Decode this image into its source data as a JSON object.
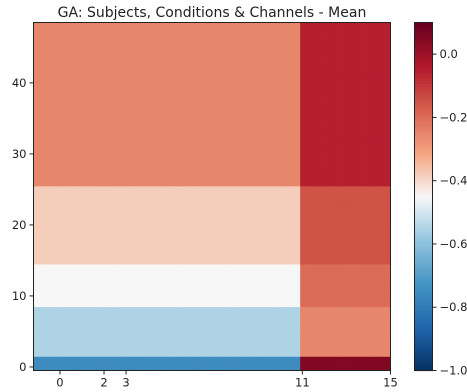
{
  "chart_data": {
    "type": "heatmap",
    "title": "GA: Subjects, Conditions & Channels - Mean",
    "colormap": "RdBu_r",
    "x_ticks": [
      0,
      2,
      3,
      11,
      15
    ],
    "x_tick_labels": [
      "0",
      "2",
      "3",
      "11",
      "15"
    ],
    "xlim": [
      -1.2,
      15
    ],
    "y_ticks": [
      0,
      10,
      20,
      30,
      40
    ],
    "y_tick_labels": [
      "0",
      "10",
      "20",
      "30",
      "40"
    ],
    "ylim": [
      -0.5,
      48.5
    ],
    "colorbar": {
      "vmin": -1.0,
      "vmax": 0.1,
      "ticks": [
        0.0,
        -0.2,
        -0.4,
        -0.6,
        -0.8,
        -1.0
      ],
      "tick_labels": [
        "0.0",
        "−0.2",
        "−0.4",
        "−0.6",
        "−0.8",
        "−1.0"
      ]
    },
    "approx_profile": {
      "x_segments": [
        {
          "x": [
            -1.2,
            10.9
          ],
          "rows_0_1": -0.75,
          "rows_2_8": -0.55,
          "rows_9_14": -0.45,
          "rows_15_25": -0.38,
          "rows_26_48": -0.25
        },
        {
          "x": [
            10.9,
            15
          ],
          "rows_0_1": 0.05,
          "rows_2_8": -0.25,
          "rows_9_14": -0.2,
          "rows_15_25": -0.15,
          "rows_26_48": -0.05
        }
      ]
    }
  }
}
